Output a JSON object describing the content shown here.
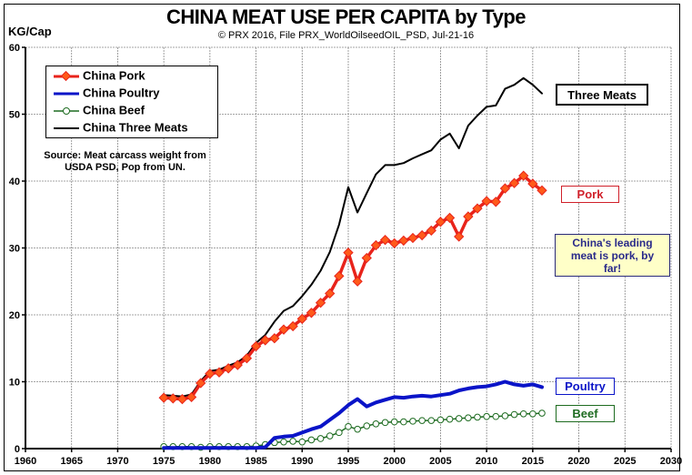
{
  "title": "CHINA MEAT USE PER CAPITA by Type",
  "subtitle": "© PRX 2016, File PRX_WorldOilseedOIL_PSD, Jul-21-16",
  "legend": [
    "China Pork",
    "China Poultry",
    "China Beef",
    "China Three Meats"
  ],
  "source_note": [
    "Source: Meat carcass weight from",
    "USDA PSD, Pop from UN."
  ],
  "annotations": {
    "three_meats": "Three Meats",
    "pork": "Pork",
    "poultry": "Poultry",
    "beef": "Beef",
    "callout": [
      "China's leading",
      "meat is pork, by",
      "far!"
    ]
  },
  "colors": {
    "pork": "#e8231b",
    "poultry": "#0a14c8",
    "beef": "#1d6b20",
    "three": "#000000",
    "callout_bg": "#ffffc8",
    "callout_border": "#2a2a7a"
  },
  "chart_data": {
    "type": "line",
    "title": "CHINA MEAT USE PER CAPITA by Type",
    "ylabel": "KG/Cap",
    "xlabel": "",
    "xlim": [
      1960,
      2030
    ],
    "ylim": [
      0,
      60
    ],
    "xticks": [
      1960,
      1965,
      1970,
      1975,
      1980,
      1985,
      1990,
      1995,
      2000,
      2005,
      2010,
      2015,
      2020,
      2025,
      2030
    ],
    "yticks": [
      0,
      10,
      20,
      30,
      40,
      50,
      60
    ],
    "grid": true,
    "legend_position": "top-left",
    "x": [
      1975,
      1976,
      1977,
      1978,
      1979,
      1980,
      1981,
      1982,
      1983,
      1984,
      1985,
      1986,
      1987,
      1988,
      1989,
      1990,
      1991,
      1992,
      1993,
      1994,
      1995,
      1996,
      1997,
      1998,
      1999,
      2000,
      2001,
      2002,
      2003,
      2004,
      2005,
      2006,
      2007,
      2008,
      2009,
      2010,
      2011,
      2012,
      2013,
      2014,
      2015,
      2016
    ],
    "series": [
      {
        "name": "China Pork",
        "values": [
          7.6,
          7.5,
          7.4,
          7.7,
          9.8,
          11.2,
          11.4,
          12.0,
          12.5,
          13.5,
          15.3,
          16.2,
          16.5,
          17.8,
          18.3,
          19.4,
          20.3,
          21.8,
          23.2,
          25.8,
          29.3,
          25.0,
          28.5,
          30.4,
          31.2,
          30.7,
          31.1,
          31.5,
          31.9,
          32.6,
          33.9,
          34.5,
          31.7,
          34.7,
          35.9,
          37.0,
          36.9,
          38.9,
          39.7,
          40.8,
          39.6,
          38.6
        ]
      },
      {
        "name": "China Poultry",
        "values": [
          0.1,
          0.1,
          0.1,
          0.1,
          0.1,
          0.1,
          0.1,
          0.1,
          0.1,
          0.1,
          0.1,
          0.2,
          1.6,
          1.8,
          1.9,
          2.4,
          2.9,
          3.3,
          4.3,
          5.3,
          6.5,
          7.4,
          6.3,
          6.9,
          7.3,
          7.7,
          7.6,
          7.8,
          7.9,
          7.8,
          8.0,
          8.2,
          8.7,
          9.0,
          9.2,
          9.3,
          9.6,
          10.0,
          9.6,
          9.4,
          9.6,
          9.2
        ]
      },
      {
        "name": "China Beef",
        "values": [
          0.3,
          0.3,
          0.3,
          0.3,
          0.2,
          0.3,
          0.3,
          0.3,
          0.3,
          0.3,
          0.4,
          0.6,
          0.9,
          1.0,
          1.1,
          1.0,
          1.3,
          1.5,
          1.9,
          2.4,
          3.3,
          2.9,
          3.4,
          3.7,
          3.9,
          4.0,
          4.0,
          4.1,
          4.2,
          4.2,
          4.3,
          4.4,
          4.5,
          4.6,
          4.7,
          4.8,
          4.8,
          4.9,
          5.1,
          5.2,
          5.2,
          5.3
        ]
      },
      {
        "name": "China Three Meats",
        "values": [
          8.0,
          7.9,
          7.8,
          8.1,
          10.1,
          11.6,
          11.8,
          12.4,
          12.9,
          13.9,
          15.8,
          17.0,
          19.0,
          20.6,
          21.3,
          22.8,
          24.5,
          26.6,
          29.4,
          33.5,
          39.1,
          35.3,
          38.2,
          41.0,
          42.4,
          42.4,
          42.7,
          43.4,
          44.0,
          44.6,
          46.2,
          47.1,
          44.9,
          48.3,
          49.8,
          51.1,
          51.3,
          53.8,
          54.4,
          55.4,
          54.4,
          53.1
        ]
      }
    ]
  }
}
